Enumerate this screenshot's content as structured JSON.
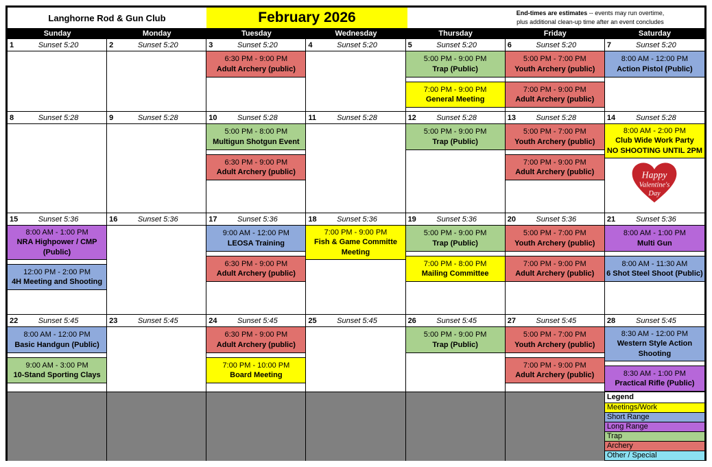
{
  "header": {
    "club_name": "Langhorne Rod & Gun Club",
    "month_title": "February 2026",
    "note": {
      "bold": "End-times are estimates",
      "line1_rest": " -- events may run overtime,",
      "line2": "plus additional clean-up time after an event concludes"
    }
  },
  "weekday_headers": [
    "Sunday",
    "Monday",
    "Tuesday",
    "Wednesday",
    "Thursday",
    "Friday",
    "Saturday"
  ],
  "event_colors": {
    "meeting": "#FFFF00",
    "short": "#8FAADC",
    "long": "#B667D9",
    "trap": "#A9D18E",
    "archery": "#E0716D",
    "other": "#8CE1F2",
    "unused": "#808080",
    "heart": "#C4242B",
    "title_highlight": "#FFFF00"
  },
  "valentine": {
    "lines": [
      "Happy",
      "Valentine's",
      "Day"
    ]
  },
  "legend": {
    "title": "Legend",
    "items": [
      {
        "label": "Meetings/Work",
        "type": "meeting"
      },
      {
        "label": "Short Range",
        "type": "short"
      },
      {
        "label": "Long Range",
        "type": "long"
      },
      {
        "label": "Trap",
        "type": "trap"
      },
      {
        "label": "Archery",
        "type": "archery"
      },
      {
        "label": "Other / Special",
        "type": "other"
      }
    ]
  },
  "weeks": [
    {
      "days": [
        {
          "number": "1",
          "sunset": "Sunset 5:20",
          "events": []
        },
        {
          "number": "2",
          "sunset": "Sunset 5:20",
          "events": []
        },
        {
          "number": "3",
          "sunset": "Sunset 5:20",
          "events": [
            {
              "time": "6:30 PM - 9:00 PM",
              "title": "Adult Archery (public)",
              "type": "archery"
            }
          ]
        },
        {
          "number": "4",
          "sunset": "Sunset 5:20",
          "events": []
        },
        {
          "number": "5",
          "sunset": "Sunset 5:20",
          "events": [
            {
              "time": "5:00 PM - 9:00 PM",
              "title": "Trap (Public)",
              "type": "trap"
            },
            {
              "time": "7:00 PM - 9:00 PM",
              "title": "General Meeting",
              "type": "meeting"
            }
          ]
        },
        {
          "number": "6",
          "sunset": "Sunset 5:20",
          "events": [
            {
              "time": "5:00 PM - 7:00 PM",
              "title": "Youth Archery (public)",
              "type": "archery"
            },
            {
              "time": "7:00 PM - 9:00 PM",
              "title": "Adult Archery (public)",
              "type": "archery"
            }
          ]
        },
        {
          "number": "7",
          "sunset": "Sunset 5:20",
          "events": [
            {
              "time": "8:00 AM - 12:00 PM",
              "title": "Action Pistol (Public)",
              "type": "short"
            }
          ]
        }
      ]
    },
    {
      "days": [
        {
          "number": "8",
          "sunset": "Sunset 5:28",
          "events": []
        },
        {
          "number": "9",
          "sunset": "Sunset 5:28",
          "events": []
        },
        {
          "number": "10",
          "sunset": "Sunset 5:28",
          "events": [
            {
              "time": "5:00 PM - 8:00 PM",
              "title": "Multigun Shotgun Event",
              "type": "trap"
            },
            {
              "time": "6:30 PM - 9:00 PM",
              "title": "Adult Archery (public)",
              "type": "archery"
            }
          ]
        },
        {
          "number": "11",
          "sunset": "Sunset 5:28",
          "events": []
        },
        {
          "number": "12",
          "sunset": "Sunset 5:28",
          "events": [
            {
              "time": "5:00 PM - 9:00 PM",
              "title": "Trap (Public)",
              "type": "trap"
            }
          ]
        },
        {
          "number": "13",
          "sunset": "Sunset 5:28",
          "events": [
            {
              "time": "5:00 PM - 7:00 PM",
              "title": "Youth Archery (public)",
              "type": "archery"
            },
            {
              "time": "7:00 PM - 9:00 PM",
              "title": "Adult Archery (public)",
              "type": "archery"
            }
          ]
        },
        {
          "number": "14",
          "sunset": "Sunset 5:28",
          "heart": true,
          "events": [
            {
              "time": "8:00 AM - 2:00 PM",
              "title": "Club Wide Work Party",
              "title2": "NO SHOOTING UNTIL 2PM",
              "type": "meeting"
            }
          ]
        }
      ]
    },
    {
      "days": [
        {
          "number": "15",
          "sunset": "Sunset 5:36",
          "events": [
            {
              "time": "8:00 AM - 1:00 PM",
              "title": "NRA Highpower / CMP (Public)",
              "type": "long"
            },
            {
              "time": "12:00 PM - 2:00 PM",
              "title": "4H Meeting and Shooting",
              "type": "short"
            }
          ]
        },
        {
          "number": "16",
          "sunset": "Sunset 5:36",
          "events": []
        },
        {
          "number": "17",
          "sunset": "Sunset 5:36",
          "events": [
            {
              "time": "9:00 AM - 12:00 PM",
              "title": "LEOSA Training",
              "type": "short"
            },
            {
              "time": "6:30 PM - 9:00 PM",
              "title": "Adult Archery (public)",
              "type": "archery"
            }
          ]
        },
        {
          "number": "18",
          "sunset": "Sunset 5:36",
          "events": [
            {
              "time": "7:00 PM - 9:00 PM",
              "title": "Fish & Game Committe Meeting",
              "type": "meeting"
            }
          ]
        },
        {
          "number": "19",
          "sunset": "Sunset 5:36",
          "events": [
            {
              "time": "5:00 PM - 9:00 PM",
              "title": "Trap (Public)",
              "type": "trap"
            },
            {
              "time": "7:00 PM - 8:00 PM",
              "title": "Mailing Committee",
              "type": "meeting"
            }
          ]
        },
        {
          "number": "20",
          "sunset": "Sunset 5:36",
          "events": [
            {
              "time": "5:00 PM - 7:00 PM",
              "title": "Youth Archery (public)",
              "type": "archery"
            },
            {
              "time": "7:00 PM - 9:00 PM",
              "title": "Adult Archery (public)",
              "type": "archery"
            }
          ]
        },
        {
          "number": "21",
          "sunset": "Sunset 5:36",
          "events": [
            {
              "time": "8:00 AM - 1:00 PM",
              "title": "Multi Gun",
              "type": "long"
            },
            {
              "time": "8:00 AM - 11:30 AM",
              "title": "6 Shot Steel Shoot (Public)",
              "type": "short"
            }
          ]
        }
      ]
    },
    {
      "days": [
        {
          "number": "22",
          "sunset": "Sunset 5:45",
          "events": [
            {
              "time": "8:00 AM - 12:00 PM",
              "title": "Basic Handgun (Public)",
              "type": "short"
            },
            {
              "time": "9:00 AM - 3:00 PM",
              "title": "10-Stand Sporting Clays",
              "type": "trap"
            }
          ]
        },
        {
          "number": "23",
          "sunset": "Sunset 5:45",
          "events": []
        },
        {
          "number": "24",
          "sunset": "Sunset 5:45",
          "events": [
            {
              "time": "6:30 PM - 9:00 PM",
              "title": "Adult Archery (public)",
              "type": "archery"
            },
            {
              "time": "7:00 PM - 10:00 PM",
              "title": "Board Meeting",
              "type": "meeting"
            }
          ]
        },
        {
          "number": "25",
          "sunset": "Sunset 5:45",
          "events": []
        },
        {
          "number": "26",
          "sunset": "Sunset 5:45",
          "events": [
            {
              "time": "5:00 PM - 9:00 PM",
              "title": "Trap (Public)",
              "type": "trap"
            }
          ]
        },
        {
          "number": "27",
          "sunset": "Sunset 5:45",
          "events": [
            {
              "time": "5:00 PM - 7:00 PM",
              "title": "Youth Archery (public)",
              "type": "archery"
            },
            {
              "time": "7:00 PM - 9:00 PM",
              "title": "Adult Archery (public)",
              "type": "archery"
            }
          ]
        },
        {
          "number": "28",
          "sunset": "Sunset 5:45",
          "events": [
            {
              "time": "8:30 AM - 12:00 PM",
              "title": "Western Style Action Shooting",
              "type": "short"
            },
            {
              "time": "8:30 AM - 1:00 PM",
              "title": "Practical Rifle (Public)",
              "type": "long"
            }
          ]
        }
      ]
    },
    {
      "days": [
        {
          "unused": true
        },
        {
          "unused": true
        },
        {
          "unused": true
        },
        {
          "unused": true
        },
        {
          "unused": true
        },
        {
          "unused": true
        },
        {
          "legend": true
        }
      ]
    }
  ]
}
